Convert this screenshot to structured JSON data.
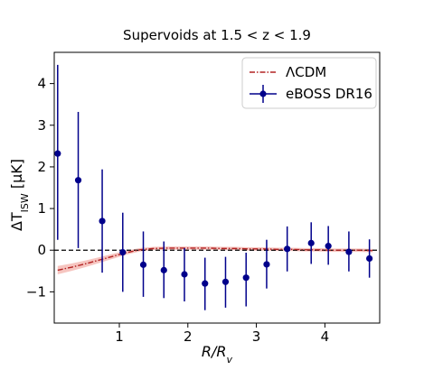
{
  "chart_data": {
    "type": "scatter",
    "title": "Supervoids at 1.5 < z < 1.9",
    "xlabel": "R/R_v",
    "ylabel": "ΔT_ISW [μK]",
    "xlim": [
      0.05,
      4.8
    ],
    "ylim": [
      -1.75,
      4.75
    ],
    "xticks": [
      1,
      2,
      3,
      4
    ],
    "yticks": [
      -1,
      0,
      1,
      2,
      3,
      4
    ],
    "x_tick_labels": [
      "1",
      "2",
      "3",
      "4"
    ],
    "y_tick_labels": [
      "−1",
      "0",
      "1",
      "2",
      "3",
      "4"
    ],
    "grid": false,
    "legend_position": "top-right",
    "reference_line": {
      "y": 0,
      "style": "dashed",
      "color": "#000000"
    },
    "series": [
      {
        "name": "ΛCDM",
        "kind": "line",
        "color": "#b22222",
        "band_color": "#f4b6b0",
        "x": [
          0.1,
          0.3,
          0.5,
          0.7,
          0.9,
          1.1,
          1.3,
          1.5,
          1.7,
          1.9,
          2.1,
          2.3,
          2.5,
          2.7,
          2.9,
          3.1,
          3.3,
          3.5,
          3.7,
          3.9,
          4.1,
          4.3,
          4.5,
          4.7
        ],
        "y": [
          -0.48,
          -0.41,
          -0.33,
          -0.24,
          -0.15,
          -0.06,
          0.01,
          0.04,
          0.05,
          0.05,
          0.05,
          0.05,
          0.04,
          0.04,
          0.03,
          0.03,
          0.02,
          0.02,
          0.01,
          0.01,
          0.0,
          0.0,
          0.0,
          -0.01
        ],
        "band_low": [
          -0.58,
          -0.5,
          -0.41,
          -0.31,
          -0.21,
          -0.11,
          -0.03,
          0.0,
          0.01,
          0.01,
          0.01,
          0.01,
          0.0,
          0.0,
          -0.01,
          -0.01,
          -0.02,
          -0.02,
          -0.03,
          -0.03,
          -0.04,
          -0.04,
          -0.04,
          -0.05
        ],
        "band_high": [
          -0.38,
          -0.32,
          -0.25,
          -0.17,
          -0.09,
          -0.01,
          0.05,
          0.08,
          0.09,
          0.09,
          0.09,
          0.09,
          0.08,
          0.08,
          0.07,
          0.07,
          0.06,
          0.06,
          0.05,
          0.05,
          0.04,
          0.04,
          0.04,
          0.03
        ]
      },
      {
        "name": "eBOSS DR16",
        "kind": "errorbar",
        "color": "#00008b",
        "x": [
          0.1,
          0.4,
          0.75,
          1.05,
          1.35,
          1.65,
          1.95,
          2.25,
          2.55,
          2.85,
          3.15,
          3.45,
          3.8,
          4.05,
          4.35,
          4.65
        ],
        "y": [
          2.32,
          1.68,
          0.7,
          -0.05,
          -0.35,
          -0.48,
          -0.58,
          -0.8,
          -0.76,
          -0.66,
          -0.34,
          0.03,
          0.17,
          0.1,
          -0.04,
          -0.2
        ],
        "yerr_low": [
          2.07,
          1.63,
          1.24,
          0.95,
          0.77,
          0.67,
          0.65,
          0.64,
          0.62,
          0.69,
          0.58,
          0.54,
          0.5,
          0.45,
          0.47,
          0.46
        ],
        "yerr_high": [
          2.13,
          1.64,
          1.24,
          0.95,
          0.8,
          0.69,
          0.63,
          0.62,
          0.6,
          0.6,
          0.59,
          0.54,
          0.5,
          0.48,
          0.49,
          0.46
        ]
      }
    ]
  }
}
